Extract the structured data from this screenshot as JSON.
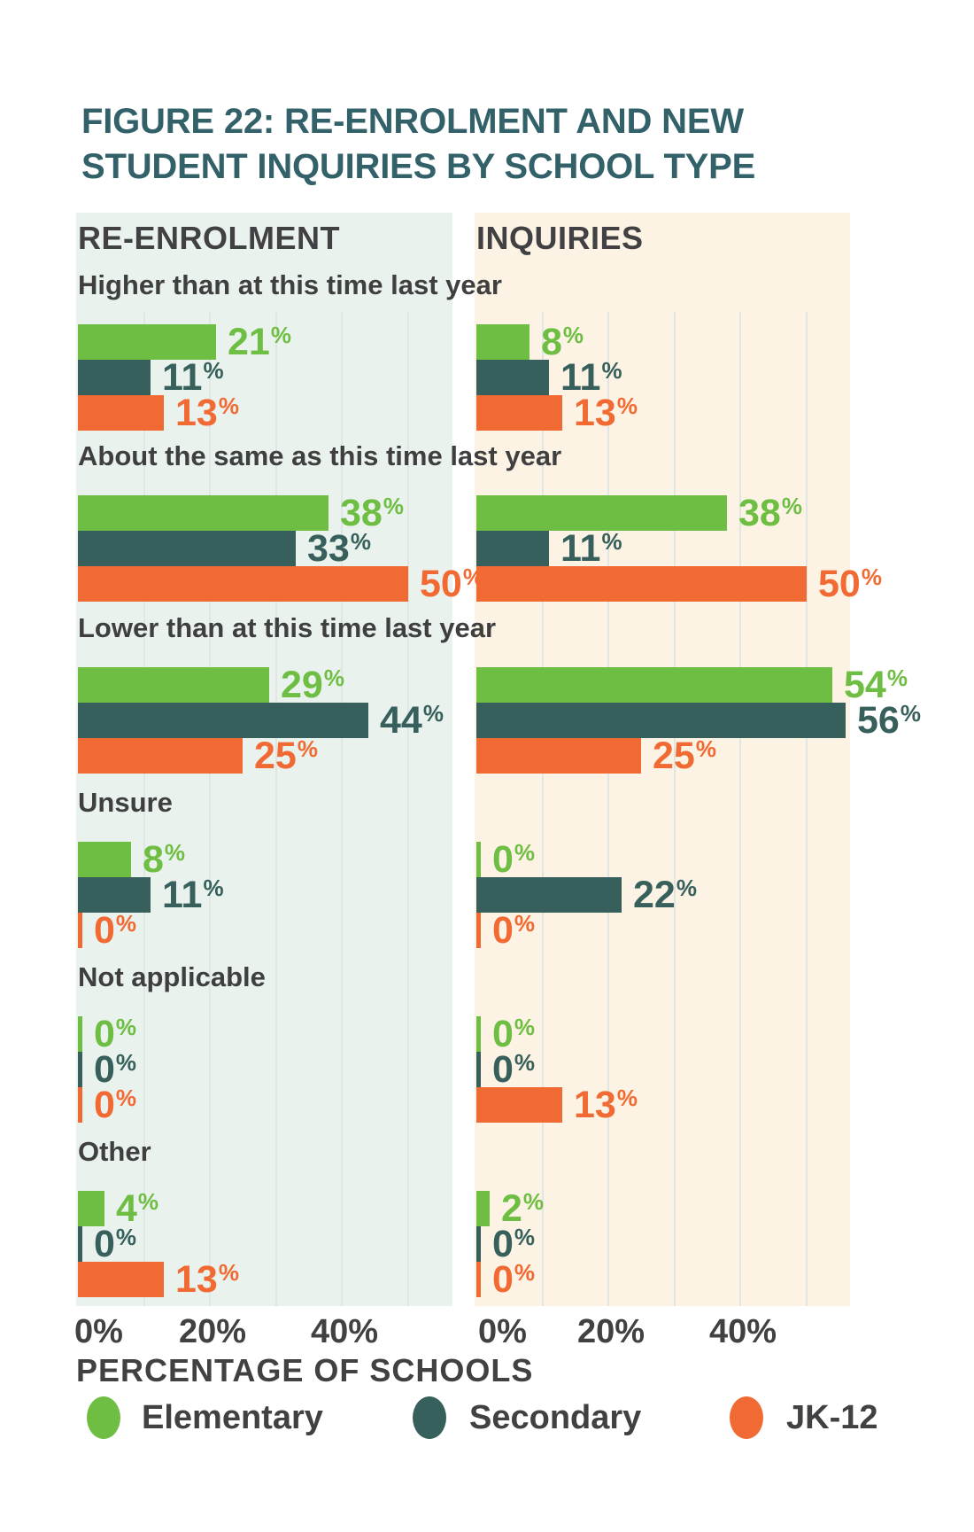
{
  "figure": {
    "title_line1": "FIGURE 22: RE-ENROLMENT AND NEW",
    "title_line2": "STUDENT INQUIRIES BY SCHOOL TYPE"
  },
  "colors": {
    "title": "#336169",
    "text": "#414042",
    "elementary": "#6FBE44",
    "secondary": "#37605C",
    "jk12": "#F26A33",
    "panel_left_bg": "#E9F2EC",
    "panel_right_bg": "#FCF3E4",
    "gridline": "#E0E6E4"
  },
  "chart_data": {
    "type": "bar",
    "orientation": "horizontal",
    "unit": "percent",
    "percent_suffix": "%",
    "xlabel": "PERCENTAGE OF SCHOOLS",
    "x_ticks": [
      "0%",
      "20%",
      "40%"
    ],
    "x_gridlines_pct": [
      10,
      20,
      30,
      40,
      50
    ],
    "xlim": [
      0,
      56
    ],
    "grid": "vertical gridlines every 10%, both panels",
    "legend_position": "bottom",
    "categories": [
      "Higher than at this time last year",
      "About the same as this time last year",
      "Lower than at this time last year",
      "Unsure",
      "Not applicable",
      "Other"
    ],
    "series": [
      {
        "name": "Elementary",
        "color": "#6FBE44"
      },
      {
        "name": "Secondary",
        "color": "#37605C"
      },
      {
        "name": "JK-12",
        "color": "#F26A33"
      }
    ],
    "panels": [
      {
        "header": "RE-ENROLMENT",
        "bg": "#E9F2EC",
        "values": [
          [
            21,
            11,
            13
          ],
          [
            38,
            33,
            50
          ],
          [
            29,
            44,
            25
          ],
          [
            8,
            11,
            0
          ],
          [
            0,
            0,
            0
          ],
          [
            4,
            0,
            13
          ]
        ]
      },
      {
        "header": "INQUIRIES",
        "bg": "#FCF3E4",
        "values": [
          [
            8,
            11,
            13
          ],
          [
            38,
            11,
            50
          ],
          [
            54,
            56,
            25
          ],
          [
            0,
            22,
            0
          ],
          [
            0,
            0,
            13
          ],
          [
            2,
            0,
            0
          ]
        ]
      }
    ]
  },
  "legend": {
    "items": [
      {
        "label": "Elementary",
        "color": "#6FBE44"
      },
      {
        "label": "Secondary",
        "color": "#37605C"
      },
      {
        "label": "JK-12",
        "color": "#F26A33"
      }
    ]
  }
}
